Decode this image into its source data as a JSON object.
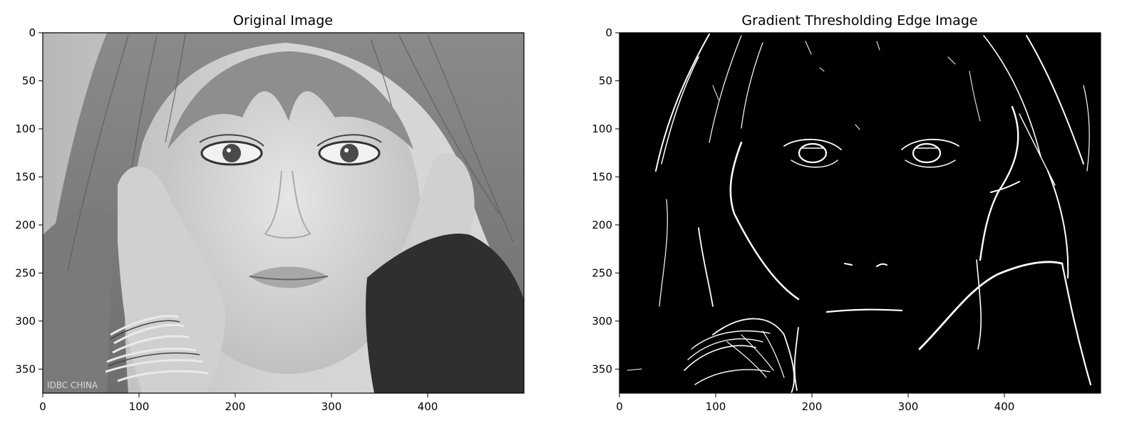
{
  "figure": {
    "background": "#ffffff"
  },
  "panels": [
    {
      "title": "Original Image",
      "image_kind": "grayscale-portrait",
      "x_ticks": [
        "0",
        "100",
        "200",
        "300",
        "400"
      ],
      "y_ticks": [
        "0",
        "50",
        "100",
        "150",
        "200",
        "250",
        "300",
        "350"
      ],
      "watermark": "IDBC CHINA"
    },
    {
      "title": "Gradient Thresholding Edge Image",
      "image_kind": "binary-edge-map",
      "x_ticks": [
        "0",
        "100",
        "200",
        "300",
        "400"
      ],
      "y_ticks": [
        "0",
        "50",
        "100",
        "150",
        "200",
        "250",
        "300",
        "350"
      ]
    }
  ],
  "chart_data": [
    {
      "type": "image",
      "title": "Original Image",
      "xlim": [
        0,
        500
      ],
      "ylim": [
        375,
        0
      ],
      "x_ticks": [
        0,
        100,
        200,
        300,
        400
      ],
      "y_ticks": [
        0,
        50,
        100,
        150,
        200,
        250,
        300,
        350
      ],
      "colormap": "gray"
    },
    {
      "type": "image",
      "title": "Gradient Thresholding Edge Image",
      "xlim": [
        0,
        500
      ],
      "ylim": [
        375,
        0
      ],
      "x_ticks": [
        0,
        100,
        200,
        300,
        400
      ],
      "y_ticks": [
        0,
        50,
        100,
        150,
        200,
        250,
        300,
        350
      ],
      "colormap": "binary"
    }
  ]
}
